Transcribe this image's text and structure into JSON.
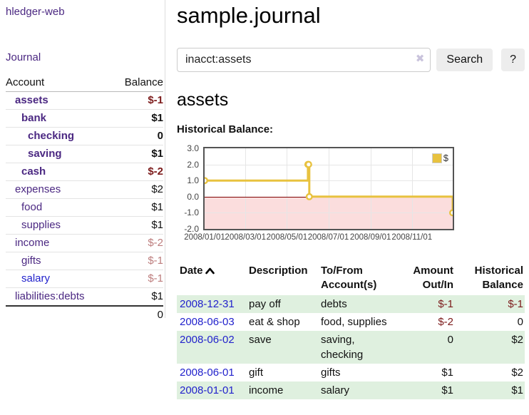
{
  "app": {
    "title": "hledger-web",
    "nav_journal": "Journal"
  },
  "colors": {
    "link_purple": "#4b2882",
    "link_blue": "#2222cc",
    "negative_strong": "#7c1b1b",
    "negative_faded": "#bd7d7d",
    "row_stripe_green": "#dff0df",
    "button_bg": "#ededed",
    "chart_line": "#e8c23f",
    "chart_negative_region": "#fbdddd",
    "chart_zero_line": "#800000",
    "chart_border": "#545454"
  },
  "sidebar": {
    "accounts_header": {
      "account": "Account",
      "balance": "Balance"
    },
    "accounts": [
      {
        "name": "assets",
        "indent": 0,
        "balance": "$-1",
        "bold": true,
        "balance_color": "strong-negative"
      },
      {
        "name": "bank",
        "indent": 1,
        "balance": "$1",
        "bold": true,
        "balance_color": "normal"
      },
      {
        "name": "checking",
        "indent": 2,
        "balance": "0",
        "bold": true,
        "balance_color": "normal"
      },
      {
        "name": "saving",
        "indent": 2,
        "balance": "$1",
        "bold": true,
        "balance_color": "normal"
      },
      {
        "name": "cash",
        "indent": 1,
        "balance": "$-2",
        "bold": true,
        "balance_color": "strong-negative"
      },
      {
        "name": "expenses",
        "indent": 0,
        "balance": "$2",
        "bold": false,
        "balance_color": "normal"
      },
      {
        "name": "food",
        "indent": 1,
        "balance": "$1",
        "bold": false,
        "balance_color": "normal"
      },
      {
        "name": "supplies",
        "indent": 1,
        "balance": "$1",
        "bold": false,
        "balance_color": "normal"
      },
      {
        "name": "income",
        "indent": 0,
        "balance": "$-2",
        "bold": false,
        "balance_color": "faded-negative"
      },
      {
        "name": "gifts",
        "indent": 1,
        "balance": "$-1",
        "bold": false,
        "balance_color": "faded-negative"
      },
      {
        "name": "salary",
        "indent": 1,
        "balance": "$-1",
        "bold": false,
        "balance_color": "faded-negative",
        "link_color": "blue"
      },
      {
        "name": "liabilities:debts",
        "indent": 0,
        "balance": "$1",
        "bold": false,
        "balance_color": "normal"
      }
    ],
    "total": "0"
  },
  "header": {
    "title": "sample.journal"
  },
  "search": {
    "value": "inacct:assets",
    "clear_icon": "✖",
    "button_label": "Search",
    "help_label": "?"
  },
  "account_page": {
    "title": "assets",
    "chart_label": "Historical Balance:"
  },
  "chart_data": {
    "type": "line",
    "step": true,
    "title": "Historical Balance",
    "legend": "$",
    "legend_position": "top-right",
    "grid": true,
    "ylim": [
      -2,
      3
    ],
    "y_ticks": [
      "3.0",
      "2.0",
      "1.0",
      "0.0",
      "-1.0",
      "-2.0"
    ],
    "x_ticks": [
      "2008/01/01",
      "2008/03/01",
      "2008/05/01",
      "2008/07/01",
      "2008/09/01",
      "2008/11/01"
    ],
    "x_range": [
      "2008-01-01",
      "2008-12-31"
    ],
    "series": [
      {
        "name": "$",
        "points": [
          {
            "date": "2008-01-01",
            "value": 1
          },
          {
            "date": "2008-06-01",
            "value": 2
          },
          {
            "date": "2008-06-02",
            "value": 2
          },
          {
            "date": "2008-06-03",
            "value": 0
          },
          {
            "date": "2008-12-31",
            "value": -1
          }
        ]
      }
    ]
  },
  "register": {
    "columns": [
      "Date",
      "Description",
      "To/From Account(s)",
      "Amount Out/In",
      "Historical Balance"
    ],
    "sort_icon_name": "chevron-up",
    "rows": [
      {
        "date": "2008-12-31",
        "description": "pay off",
        "accounts": "debts",
        "amount": "$-1",
        "amount_negative": true,
        "balance": "$-1",
        "balance_negative": true,
        "stripe": true
      },
      {
        "date": "2008-06-03",
        "description": "eat & shop",
        "accounts": "food, supplies",
        "amount": "$-2",
        "amount_negative": true,
        "balance": "0",
        "balance_negative": false,
        "stripe": false
      },
      {
        "date": "2008-06-02",
        "description": "save",
        "accounts": "saving,\nchecking",
        "amount": "0",
        "amount_negative": false,
        "balance": "$2",
        "balance_negative": false,
        "stripe": true
      },
      {
        "date": "2008-06-01",
        "description": "gift",
        "accounts": "gifts",
        "amount": "$1",
        "amount_negative": false,
        "balance": "$2",
        "balance_negative": false,
        "stripe": false
      },
      {
        "date": "2008-01-01",
        "description": "income",
        "accounts": "salary",
        "amount": "$1",
        "amount_negative": false,
        "balance": "$1",
        "balance_negative": false,
        "stripe": true
      }
    ]
  }
}
